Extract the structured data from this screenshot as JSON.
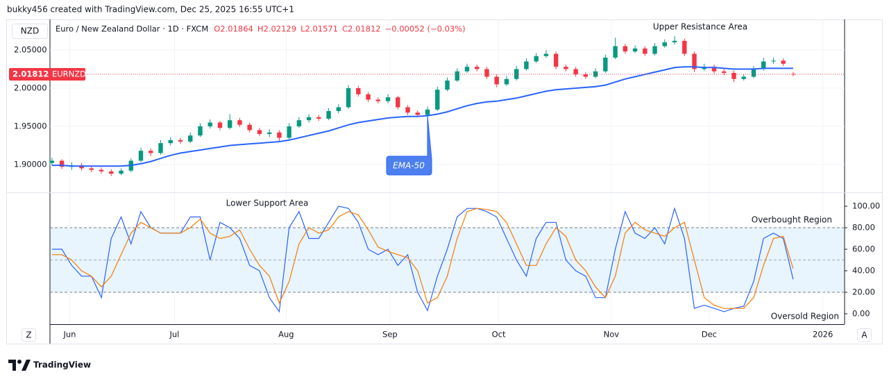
{
  "header": "bukky456 created with TradingView.com, Dec 25, 2025 16:55 UTC+1",
  "brand": "TradingView",
  "buttons": [
    "Z",
    "A"
  ],
  "chart_data": [
    {
      "type": "candlestick",
      "title": "Euro / New Zealand Dollar · 1D · FXCM",
      "legend_values": [
        "O2.01864",
        "H2.02129",
        "L2.01571",
        "C2.01812",
        "−0.00052 (−0.03%)"
      ],
      "currency": "NZD",
      "symbol": "EURNZD",
      "up_color": "#089981",
      "down_color": "#f23645",
      "annotations": [
        "Upper Resistance Area"
      ],
      "xlim": [
        -0.2,
        80.2
      ],
      "ylim": [
        1.8636,
        2.09
      ],
      "yticks": [
        {
          "value": 1.9,
          "label": "1.90000"
        },
        {
          "value": 1.95,
          "label": "1.95000"
        },
        {
          "value": 2.0,
          "label": "2.00000"
        },
        {
          "value": 2.05,
          "label": "2.05000"
        }
      ],
      "candles": [
        [
          1.902,
          1.909,
          1.899,
          1.905
        ],
        [
          1.905,
          1.907,
          1.894,
          1.897
        ],
        [
          1.897,
          1.903,
          1.893,
          1.899
        ],
        [
          1.899,
          1.902,
          1.892,
          1.895
        ],
        [
          1.895,
          1.898,
          1.89,
          1.893
        ],
        [
          1.893,
          1.896,
          1.888,
          1.891
        ],
        [
          1.891,
          1.894,
          1.885,
          1.888
        ],
        [
          1.888,
          1.895,
          1.886,
          1.892
        ],
        [
          1.892,
          1.908,
          1.89,
          1.905
        ],
        [
          1.905,
          1.922,
          1.903,
          1.918
        ],
        [
          1.918,
          1.921,
          1.911,
          1.915
        ],
        [
          1.915,
          1.932,
          1.913,
          1.928
        ],
        [
          1.928,
          1.936,
          1.925,
          1.932
        ],
        [
          1.932,
          1.935,
          1.927,
          1.93
        ],
        [
          1.93,
          1.942,
          1.928,
          1.938
        ],
        [
          1.938,
          1.954,
          1.936,
          1.95
        ],
        [
          1.95,
          1.959,
          1.947,
          1.955
        ],
        [
          1.955,
          1.957,
          1.945,
          1.948
        ],
        [
          1.948,
          1.966,
          1.946,
          1.958
        ],
        [
          1.958,
          1.961,
          1.949,
          1.952
        ],
        [
          1.952,
          1.955,
          1.942,
          1.945
        ],
        [
          1.945,
          1.948,
          1.937,
          1.94
        ],
        [
          1.94,
          1.946,
          1.936,
          1.942
        ],
        [
          1.942,
          1.945,
          1.93,
          1.935
        ],
        [
          1.935,
          1.954,
          1.933,
          1.95
        ],
        [
          1.95,
          1.962,
          1.948,
          1.958
        ],
        [
          1.958,
          1.966,
          1.955,
          1.962
        ],
        [
          1.962,
          1.965,
          1.957,
          1.96
        ],
        [
          1.96,
          1.974,
          1.958,
          1.97
        ],
        [
          1.97,
          1.979,
          1.967,
          1.975
        ],
        [
          1.975,
          2.004,
          1.973,
          2.0
        ],
        [
          2.0,
          2.003,
          1.989,
          1.992
        ],
        [
          1.992,
          1.995,
          1.982,
          1.985
        ],
        [
          1.985,
          1.988,
          1.98,
          1.983
        ],
        [
          1.983,
          1.992,
          1.98,
          1.988
        ],
        [
          1.988,
          1.99,
          1.972,
          1.975
        ],
        [
          1.975,
          1.978,
          1.965,
          1.968
        ],
        [
          1.968,
          1.971,
          1.962,
          1.965
        ],
        [
          1.965,
          1.976,
          1.963,
          1.972
        ],
        [
          1.972,
          2.002,
          1.97,
          1.998
        ],
        [
          1.998,
          2.014,
          1.996,
          2.01
        ],
        [
          2.01,
          2.026,
          2.008,
          2.022
        ],
        [
          2.022,
          2.032,
          2.02,
          2.028
        ],
        [
          2.028,
          2.031,
          2.022,
          2.025
        ],
        [
          2.025,
          2.028,
          2.012,
          2.015
        ],
        [
          2.015,
          2.018,
          2.001,
          2.005
        ],
        [
          2.005,
          2.016,
          2.003,
          2.012
        ],
        [
          2.012,
          2.029,
          2.01,
          2.025
        ],
        [
          2.025,
          2.039,
          2.023,
          2.035
        ],
        [
          2.035,
          2.046,
          2.033,
          2.042
        ],
        [
          2.042,
          2.05,
          2.04,
          2.045
        ],
        [
          2.045,
          2.048,
          2.025,
          2.028
        ],
        [
          2.028,
          2.031,
          2.022,
          2.025
        ],
        [
          2.025,
          2.028,
          2.015,
          2.018
        ],
        [
          2.018,
          2.021,
          2.012,
          2.015
        ],
        [
          2.015,
          2.026,
          2.013,
          2.022
        ],
        [
          2.022,
          2.044,
          2.02,
          2.04
        ],
        [
          2.04,
          2.066,
          2.038,
          2.055
        ],
        [
          2.055,
          2.058,
          2.045,
          2.048
        ],
        [
          2.048,
          2.056,
          2.046,
          2.052
        ],
        [
          2.052,
          2.055,
          2.042,
          2.045
        ],
        [
          2.045,
          2.059,
          2.043,
          2.055
        ],
        [
          2.055,
          2.064,
          2.053,
          2.06
        ],
        [
          2.06,
          2.068,
          2.057,
          2.062
        ],
        [
          2.062,
          2.065,
          2.042,
          2.045
        ],
        [
          2.045,
          2.048,
          2.021,
          2.025
        ],
        [
          2.025,
          2.032,
          2.023,
          2.028
        ],
        [
          2.028,
          2.031,
          2.019,
          2.022
        ],
        [
          2.022,
          2.025,
          2.017,
          2.02
        ],
        [
          2.02,
          2.023,
          2.008,
          2.012
        ],
        [
          2.012,
          2.018,
          2.01,
          2.015
        ],
        [
          2.015,
          2.029,
          2.013,
          2.025
        ],
        [
          2.025,
          2.04,
          2.023,
          2.035
        ],
        [
          2.035,
          2.04,
          2.032,
          2.036
        ],
        [
          2.036,
          2.039,
          2.029,
          2.032
        ],
        [
          2.01864,
          2.02129,
          2.01571,
          2.01812
        ]
      ],
      "series": [
        {
          "name": "EMA-50",
          "color": "#2962ff",
          "values": [
            1.899,
            1.899,
            1.898,
            1.898,
            1.898,
            1.898,
            1.898,
            1.898,
            1.899,
            1.901,
            1.904,
            1.908,
            1.912,
            1.915,
            1.917,
            1.919,
            1.921,
            1.923,
            1.925,
            1.926,
            1.927,
            1.928,
            1.929,
            1.93,
            1.932,
            1.935,
            1.938,
            1.941,
            1.944,
            1.948,
            1.952,
            1.955,
            1.957,
            1.959,
            1.961,
            1.962,
            1.963,
            1.963,
            1.964,
            1.966,
            1.969,
            1.973,
            1.977,
            1.98,
            1.982,
            1.983,
            1.985,
            1.987,
            1.99,
            1.993,
            1.996,
            1.998,
            1.999,
            2.0,
            2.001,
            2.002,
            2.004,
            2.008,
            2.012,
            2.015,
            2.018,
            2.021,
            2.024,
            2.027,
            2.028,
            2.028,
            2.027,
            2.027,
            2.026,
            2.025,
            2.025,
            2.025,
            2.026,
            2.026,
            2.026,
            2.026
          ]
        }
      ]
    },
    {
      "type": "line",
      "annotations": [
        "Lower Support Area",
        "Overbought Region",
        "Oversold Region"
      ],
      "xlim": [
        -0.2,
        80.2
      ],
      "ylim": [
        -9.7,
        112.3
      ],
      "xticks": [
        {
          "value": 1.8,
          "label": "Jun"
        },
        {
          "value": 12.4,
          "label": "Jul"
        },
        {
          "value": 23.7,
          "label": "Aug"
        },
        {
          "value": 34.2,
          "label": "Sep"
        },
        {
          "value": 45.2,
          "label": "Oct"
        },
        {
          "value": 56.6,
          "label": "Nov"
        },
        {
          "value": 66.5,
          "label": "Dec"
        },
        {
          "value": 78,
          "label": "2026"
        }
      ],
      "yticks": [
        {
          "value": 0,
          "label": "0.00"
        },
        {
          "value": 20,
          "label": "20.00"
        },
        {
          "value": 40,
          "label": "40.00"
        },
        {
          "value": 60,
          "label": "60.00"
        },
        {
          "value": 80,
          "label": "80.00"
        },
        {
          "value": 100,
          "label": "100.00"
        }
      ],
      "bands": {
        "upper": 80,
        "middle": 50,
        "lower": 20
      },
      "series": [
        {
          "color": "#2962ff",
          "values": [
            60,
            60,
            45,
            35,
            35,
            15,
            70,
            90,
            65,
            95,
            80,
            75,
            75,
            75,
            90,
            90,
            50,
            85,
            80,
            70,
            45,
            40,
            15,
            2,
            80,
            95,
            70,
            70,
            85,
            100,
            98,
            85,
            60,
            55,
            60,
            45,
            55,
            20,
            3,
            35,
            60,
            90,
            98,
            98,
            95,
            90,
            70,
            50,
            35,
            70,
            85,
            85,
            50,
            40,
            35,
            15,
            15,
            60,
            95,
            75,
            70,
            80,
            65,
            98,
            70,
            5,
            8,
            5,
            2,
            5,
            7,
            30,
            70,
            75,
            70,
            32
          ]
        },
        {
          "color": "#f57c00",
          "values": [
            55,
            55,
            50,
            40,
            35,
            25,
            35,
            55,
            75,
            85,
            80,
            75,
            75,
            75,
            80,
            88,
            75,
            70,
            72,
            78,
            60,
            45,
            35,
            10,
            30,
            65,
            80,
            75,
            78,
            90,
            95,
            92,
            78,
            62,
            58,
            55,
            52,
            40,
            10,
            15,
            35,
            70,
            95,
            98,
            97,
            95,
            85,
            65,
            45,
            45,
            65,
            80,
            72,
            50,
            40,
            25,
            15,
            35,
            75,
            85,
            78,
            75,
            72,
            80,
            85,
            50,
            15,
            8,
            5,
            5,
            5,
            15,
            45,
            70,
            72,
            42
          ]
        }
      ]
    }
  ]
}
